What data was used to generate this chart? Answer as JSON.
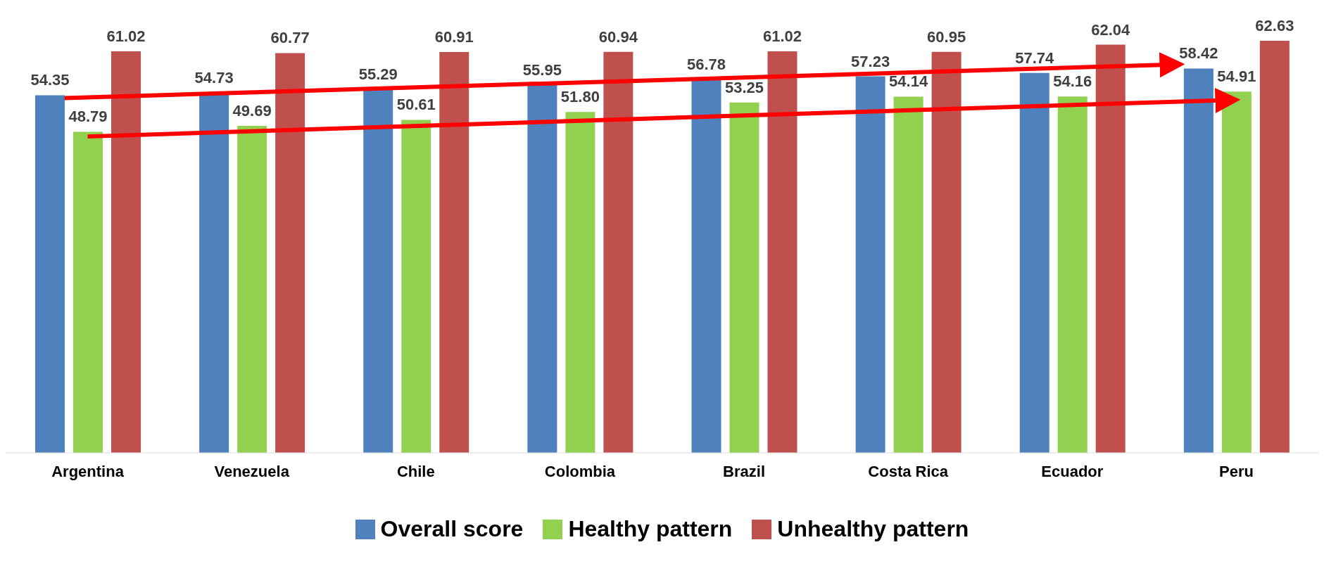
{
  "chart_data": {
    "type": "bar",
    "categories": [
      "Argentina",
      "Venezuela",
      "Chile",
      "Colombia",
      "Brazil",
      "Costa Rica",
      "Ecuador",
      "Peru"
    ],
    "series": [
      {
        "name": "Overall score",
        "color": "#4f81bd",
        "values": [
          54.35,
          54.73,
          55.29,
          55.95,
          56.78,
          57.23,
          57.74,
          58.42
        ],
        "value_labels": [
          "54.35",
          "54.73",
          "55.29",
          "55.95",
          "56.78",
          "57.23",
          "57.74",
          "58.42"
        ]
      },
      {
        "name": "Healthy pattern",
        "color": "#92d050",
        "values": [
          48.79,
          49.69,
          50.61,
          51.8,
          53.25,
          54.14,
          54.16,
          54.91
        ],
        "value_labels": [
          "48.79",
          "49.69",
          "50.61",
          "51.80",
          "53.25",
          "54.14",
          "54.16",
          "54.91"
        ]
      },
      {
        "name": "Unhealthy pattern",
        "color": "#c0504d",
        "values": [
          61.02,
          60.77,
          60.91,
          60.94,
          61.02,
          60.95,
          62.04,
          62.63
        ],
        "value_labels": [
          "61.02",
          "60.77",
          "60.91",
          "60.94",
          "61.02",
          "60.95",
          "62.04",
          "62.63"
        ]
      }
    ],
    "tick_labels": "x",
    "grid": false,
    "legend": "bottom"
  }
}
